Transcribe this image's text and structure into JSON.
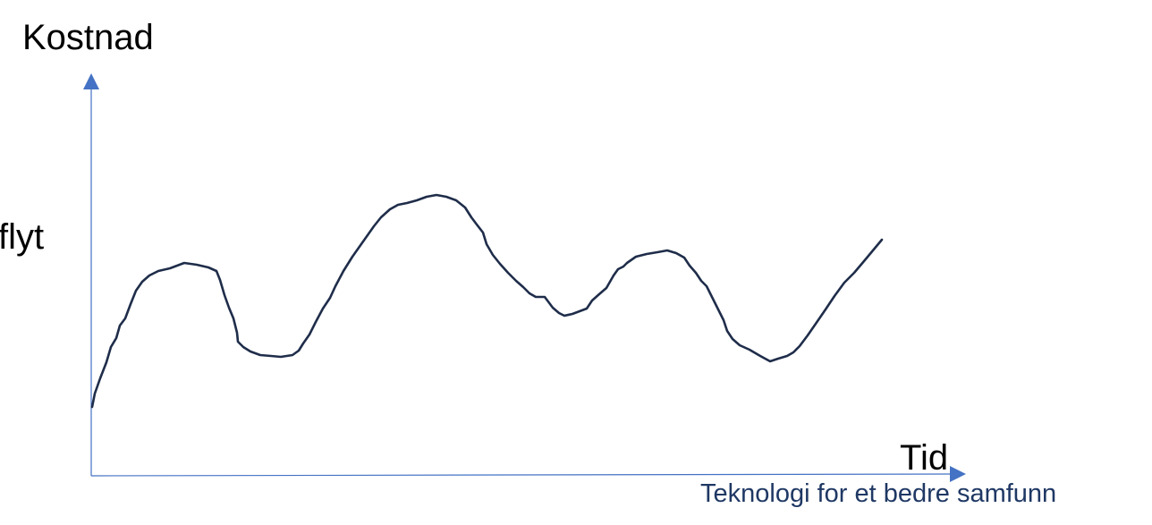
{
  "labels": {
    "y_axis": "Kostnad",
    "side_text": "flyt",
    "x_axis": "Tid",
    "footer": "Teknologi for et bedre samfunn"
  },
  "colors": {
    "axis": "#4472c4",
    "curve": "#1f2d4a",
    "footer": "#1f3864",
    "text": "#000000"
  }
}
